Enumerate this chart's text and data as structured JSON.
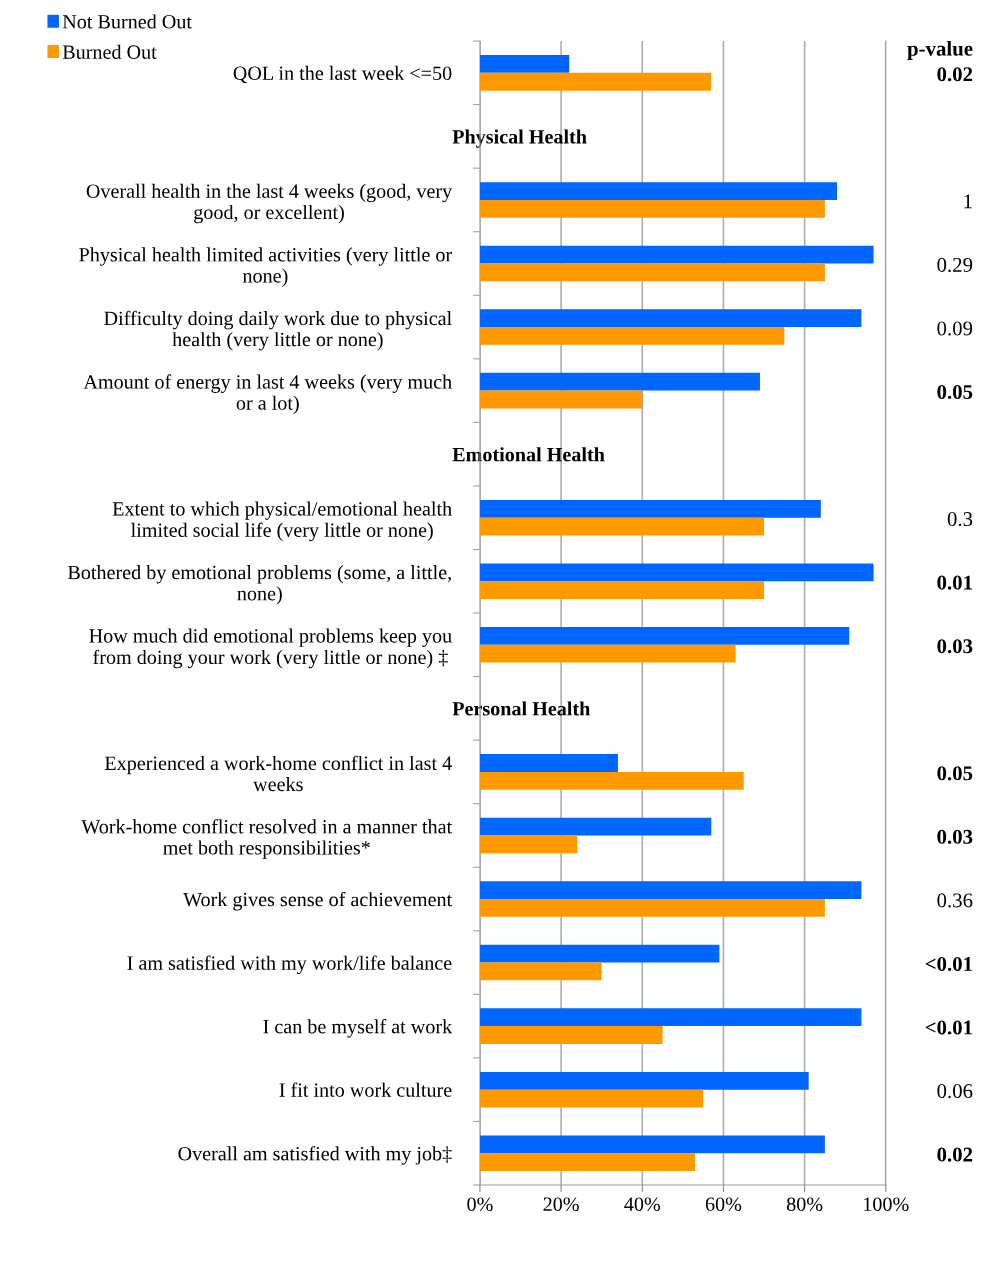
{
  "chart_data": {
    "type": "bar",
    "orientation": "horizontal",
    "categories": [
      "QOL in the last week <=50",
      "Physical Health",
      "Overall health in the last 4 weeks (good, very\ngood, or excellent)",
      "Physical health limited activities (very little or\nnone)",
      "Difficulty doing daily work due to physical\nhealth (very little or none)",
      "Amount of energy in last 4 weeks (very much\nor a lot)",
      "Emotional Health",
      "Extent to which physical/emotional health\nlimited social life (very little or none)",
      "Bothered by emotional problems (some, a little,\nnone)",
      "How much did emotional problems keep you\nfrom doing your work (very little or none) ‡",
      "Personal Health",
      "Experienced a work-home conflict in last 4\nweeks",
      "Work-home conflict resolved in a manner that\nmet both responsibilities*",
      "Work gives sense of achievement",
      "I am satisfied with my work/life balance",
      "I can be myself at work",
      "I fit into work culture",
      "Overall am satisfied with my job‡"
    ],
    "series": [
      {
        "name": "Not Burned Out",
        "color": "#0066ff",
        "values": [
          22,
          null,
          88,
          97,
          94,
          69,
          null,
          84,
          97,
          91,
          null,
          34,
          57,
          94,
          59,
          94,
          81,
          85
        ]
      },
      {
        "name": "Burned Out",
        "color": "#ff9900",
        "values": [
          57,
          null,
          85,
          85,
          75,
          40,
          null,
          70,
          70,
          63,
          null,
          65,
          24,
          85,
          30,
          45,
          55,
          53
        ]
      }
    ],
    "xlim": [
      0,
      100
    ],
    "xticks": [
      {
        "value": 0,
        "label": "0%"
      },
      {
        "value": 20,
        "label": "20%"
      },
      {
        "value": 40,
        "label": "40%"
      },
      {
        "value": 60,
        "label": "60%"
      },
      {
        "value": 80,
        "label": "80%"
      },
      {
        "value": 100,
        "label": "100%"
      }
    ],
    "grid": "x",
    "legend": "top left",
    "annotations": [
      "p-value",
      "0.02",
      "1",
      "0.29",
      "0.09",
      "0.05",
      "0.3",
      "0.01",
      "0.03",
      "0.05",
      "0.03",
      "0.36",
      "<0.01",
      "<0.01",
      "0.06",
      "0.02"
    ]
  }
}
